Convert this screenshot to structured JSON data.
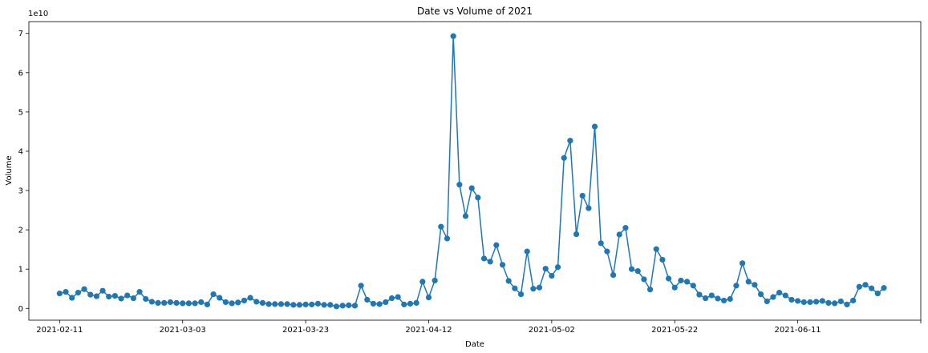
{
  "chart_data": {
    "type": "line",
    "title": "Date vs Volume of 2021",
    "xlabel": "Date",
    "ylabel": "Volume",
    "y_multiplier_label": "1e10",
    "x_start": "2021-02-11",
    "x_tick_labels": [
      "2021-02-11",
      "2021-03-03",
      "2021-03-23",
      "2021-04-12",
      "2021-05-02",
      "2021-05-22",
      "2021-06-11"
    ],
    "y_tick_labels": [
      "0",
      "1",
      "2",
      "3",
      "4",
      "5",
      "6",
      "7"
    ],
    "xlim": [
      "2021-02-06",
      "2021-07-01"
    ],
    "ylim": [
      -0.3,
      7.3
    ],
    "grid": false,
    "color": "#1f77b4",
    "series": [
      {
        "values": [
          0.38,
          0.42,
          0.27,
          0.4,
          0.49,
          0.35,
          0.31,
          0.45,
          0.3,
          0.32,
          0.25,
          0.33,
          0.26,
          0.42,
          0.24,
          0.17,
          0.14,
          0.14,
          0.16,
          0.14,
          0.13,
          0.13,
          0.13,
          0.16,
          0.1,
          0.36,
          0.27,
          0.16,
          0.13,
          0.15,
          0.2,
          0.27,
          0.17,
          0.14,
          0.11,
          0.11,
          0.11,
          0.11,
          0.09,
          0.09,
          0.1,
          0.1,
          0.12,
          0.09,
          0.09,
          0.05,
          0.07,
          0.08,
          0.07,
          0.58,
          0.22,
          0.12,
          0.11,
          0.16,
          0.26,
          0.29,
          0.1,
          0.12,
          0.14,
          0.68,
          0.28,
          0.71,
          2.08,
          1.78,
          6.93,
          3.15,
          2.35,
          3.06,
          2.82,
          1.27,
          1.19,
          1.61,
          1.11,
          0.7,
          0.51,
          0.36,
          1.45,
          0.5,
          0.53,
          1.01,
          0.83,
          1.05,
          3.83,
          4.27,
          1.89,
          2.87,
          2.55,
          4.63,
          1.66,
          1.45,
          0.85,
          1.88,
          2.05,
          1.0,
          0.95,
          0.74,
          0.48,
          1.51,
          1.24,
          0.76,
          0.53,
          0.71,
          0.68,
          0.58,
          0.35,
          0.26,
          0.33,
          0.25,
          0.2,
          0.24,
          0.58,
          1.15,
          0.68,
          0.6,
          0.36,
          0.18,
          0.29,
          0.4,
          0.33,
          0.22,
          0.19,
          0.16,
          0.16,
          0.17,
          0.19,
          0.14,
          0.13,
          0.18,
          0.1,
          0.2,
          0.55,
          0.6,
          0.51,
          0.38,
          0.52
        ]
      }
    ]
  }
}
